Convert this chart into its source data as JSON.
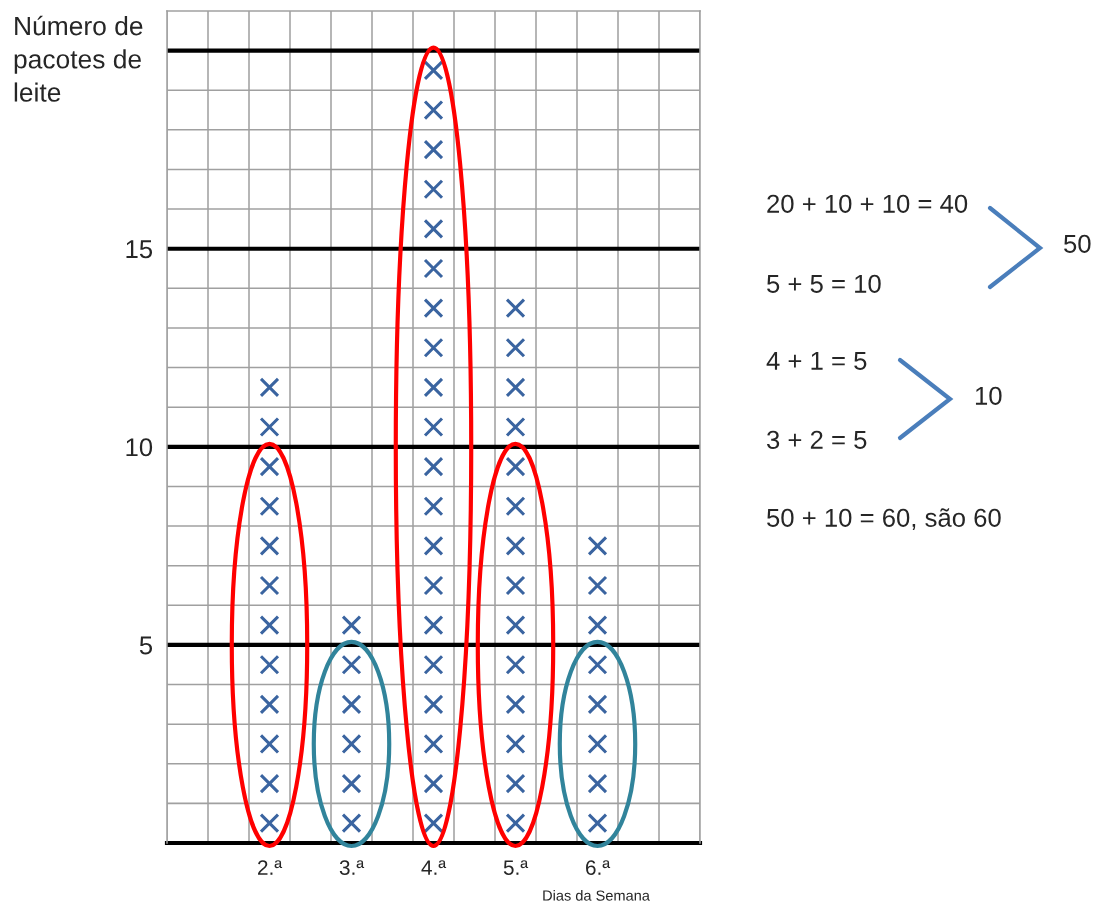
{
  "chart_data": {
    "type": "scatter",
    "ylabel": "Número de\npacotes de\nleite",
    "xlabel": "Dias da Semana",
    "categories": [
      "2.ª",
      "3.ª",
      "4.ª",
      "5.ª",
      "6.ª"
    ],
    "series": [
      {
        "color": "#3a64a0",
        "x": [
          "2.ª",
          "2.ª",
          "2.ª",
          "2.ª",
          "2.ª",
          "2.ª",
          "2.ª",
          "2.ª",
          "2.ª",
          "2.ª",
          "2.ª",
          "2.ª",
          "3.ª",
          "3.ª",
          "3.ª",
          "3.ª",
          "3.ª",
          "3.ª",
          "4.ª",
          "4.ª",
          "4.ª",
          "4.ª",
          "4.ª",
          "4.ª",
          "4.ª",
          "4.ª",
          "4.ª",
          "4.ª",
          "4.ª",
          "4.ª",
          "4.ª",
          "4.ª",
          "4.ª",
          "4.ª",
          "4.ª",
          "4.ª",
          "4.ª",
          "4.ª",
          "5.ª",
          "5.ª",
          "5.ª",
          "5.ª",
          "5.ª",
          "5.ª",
          "5.ª",
          "5.ª",
          "5.ª",
          "5.ª",
          "5.ª",
          "5.ª",
          "5.ª",
          "5.ª",
          "6.ª",
          "6.ª",
          "6.ª",
          "6.ª",
          "6.ª",
          "6.ª",
          "6.ª",
          "6.ª"
        ],
        "values": [
          0.5,
          1.5,
          2.5,
          3.5,
          4.5,
          5.5,
          6.5,
          7.5,
          8.5,
          9.5,
          10.5,
          11.5,
          0.5,
          1.5,
          2.5,
          3.5,
          4.5,
          5.5,
          0.5,
          1.5,
          2.5,
          3.5,
          4.5,
          5.5,
          6.5,
          7.5,
          8.5,
          9.5,
          10.5,
          11.5,
          12.5,
          13.5,
          14.5,
          15.5,
          16.5,
          17.5,
          18.5,
          19.5,
          0.5,
          1.5,
          2.5,
          3.5,
          4.5,
          5.5,
          6.5,
          7.5,
          8.5,
          9.5,
          10.5,
          11.5,
          12.5,
          13.5,
          0.5,
          1.5,
          2.5,
          3.5,
          4.5,
          5.5,
          6.5,
          7.5
        ]
      }
    ],
    "marker": "cross",
    "ylim": [
      0,
      21
    ],
    "yticks": [
      {
        "value": 1,
        "label": null
      },
      {
        "value": 2,
        "label": null
      },
      {
        "value": 3,
        "label": null
      },
      {
        "value": 4,
        "label": null
      },
      5,
      {
        "value": 6,
        "label": null
      },
      {
        "value": 7,
        "label": null
      },
      {
        "value": 8,
        "label": null
      },
      {
        "value": 9,
        "label": null
      },
      10,
      {
        "value": 11,
        "label": null
      },
      {
        "value": 12,
        "label": null
      },
      {
        "value": 13,
        "label": null
      },
      {
        "value": 14,
        "label": null
      },
      15,
      {
        "value": 16,
        "label": null
      },
      {
        "value": 17,
        "label": null
      },
      {
        "value": 18,
        "label": null
      },
      {
        "value": 19,
        "label": null
      }
    ],
    "grid": true,
    "ref_lines": [
      {
        "axis": "y",
        "value": 20,
        "label": null,
        "color": "#000000"
      }
    ],
    "annotations": [
      "20 + 10 + 10 = 40",
      "5 + 5 = 10",
      "50",
      "4 + 1 = 5",
      "3 + 2 = 5",
      "10",
      "50 + 10 = 60, são 60"
    ]
  }
}
